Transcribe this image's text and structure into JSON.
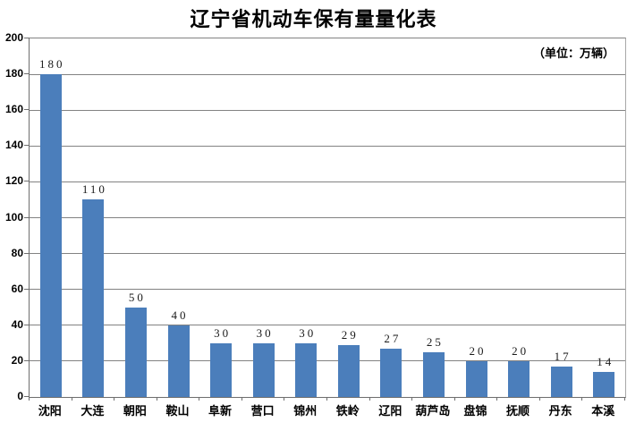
{
  "chart_data": {
    "type": "bar",
    "title": "辽宁省机动车保有量量化表",
    "unit_label": "（单位：万辆）",
    "categories": [
      "沈阳",
      "大连",
      "朝阳",
      "鞍山",
      "阜新",
      "营口",
      "锦州",
      "铁岭",
      "辽阳",
      "葫芦岛",
      "盘锦",
      "抚顺",
      "丹东",
      "本溪"
    ],
    "values": [
      180,
      110,
      50,
      40,
      30,
      30,
      30,
      29,
      27,
      25,
      20,
      20,
      17,
      14
    ],
    "xlabel": "",
    "ylabel": "",
    "ylim": [
      0,
      200
    ],
    "ytick_step": 20,
    "grid": true,
    "legend": "none",
    "data_labels": true,
    "bar_color": "#4b7ebb",
    "gridline_color": "#828282"
  }
}
